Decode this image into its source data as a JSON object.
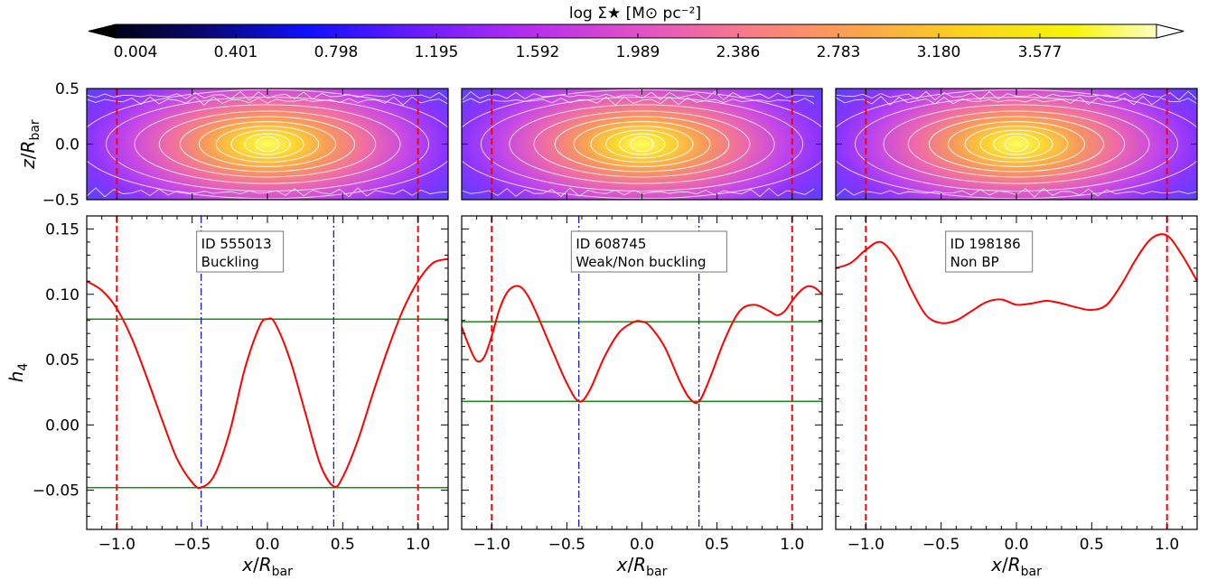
{
  "colorbar": {
    "label": "log Σ★ [M⊙ pc⁻²]",
    "ticks": [
      "0.004",
      "0.401",
      "0.798",
      "1.195",
      "1.592",
      "1.989",
      "2.386",
      "2.783",
      "3.180",
      "3.577"
    ],
    "stops": [
      "#000000",
      "#08086a",
      "#1010ff",
      "#6a1cff",
      "#b42cf0",
      "#e050c8",
      "#f77a8a",
      "#fba24e",
      "#fbd21e",
      "#f5f50a",
      "#ffffff"
    ]
  },
  "chart_data": [
    {
      "type": "line",
      "panel": "buckling",
      "annotation": [
        "ID 555013",
        "Buckling"
      ],
      "xlabel": "x/R_bar",
      "ylabel": "h_4",
      "top_ylabel": "z/R_bar",
      "xlim": [
        -1.2,
        1.2
      ],
      "ylim": [
        -0.08,
        0.16
      ],
      "xticks": [
        "-1.0",
        "-0.5",
        "0.0",
        "0.5",
        "1.0"
      ],
      "yticks": [
        "-0.05",
        "0.00",
        "0.05",
        "0.10",
        "0.15"
      ],
      "top_yticks": [
        "0.5",
        "0.0",
        "-0.5"
      ],
      "top_ylim": [
        -0.5,
        0.5
      ],
      "series": [
        {
          "color": "#ff0000",
          "x": [
            -1.2,
            -1.1,
            -1.0,
            -0.9,
            -0.8,
            -0.7,
            -0.6,
            -0.5,
            -0.44,
            -0.35,
            -0.25,
            -0.15,
            -0.05,
            0.0,
            0.05,
            0.15,
            0.25,
            0.35,
            0.44,
            0.5,
            0.6,
            0.7,
            0.8,
            0.9,
            1.0,
            1.1,
            1.2
          ],
          "y": [
            0.11,
            0.103,
            0.089,
            0.066,
            0.036,
            0.004,
            -0.026,
            -0.044,
            -0.048,
            -0.038,
            -0.005,
            0.043,
            0.076,
            0.081,
            0.078,
            0.05,
            0.01,
            -0.03,
            -0.047,
            -0.04,
            -0.012,
            0.024,
            0.058,
            0.088,
            0.11,
            0.124,
            0.127
          ]
        }
      ],
      "hlines": [
        0.081,
        -0.048
      ],
      "red_vlines": [
        -1.0,
        1.0
      ],
      "blue_vlines": [
        -0.44,
        0.44
      ]
    },
    {
      "type": "line",
      "panel": "weak",
      "annotation": [
        "ID 608745",
        "Weak/Non buckling"
      ],
      "xlabel": "x/R_bar",
      "xlim": [
        -1.2,
        1.2
      ],
      "ylim": [
        -0.08,
        0.16
      ],
      "xticks": [
        "-1.0",
        "-0.5",
        "0.0",
        "0.5",
        "1.0"
      ],
      "series": [
        {
          "color": "#ff0000",
          "x": [
            -1.2,
            -1.15,
            -1.1,
            -1.05,
            -1.0,
            -0.95,
            -0.9,
            -0.85,
            -0.8,
            -0.75,
            -0.7,
            -0.6,
            -0.5,
            -0.42,
            -0.35,
            -0.25,
            -0.15,
            -0.05,
            0.0,
            0.05,
            0.15,
            0.25,
            0.32,
            0.38,
            0.45,
            0.55,
            0.65,
            0.75,
            0.85,
            0.9,
            0.95,
            1.0,
            1.05,
            1.1,
            1.15,
            1.2
          ],
          "y": [
            0.075,
            0.06,
            0.049,
            0.052,
            0.068,
            0.088,
            0.101,
            0.106,
            0.105,
            0.097,
            0.085,
            0.058,
            0.032,
            0.018,
            0.026,
            0.052,
            0.071,
            0.079,
            0.079,
            0.076,
            0.06,
            0.034,
            0.02,
            0.018,
            0.035,
            0.065,
            0.087,
            0.092,
            0.087,
            0.084,
            0.087,
            0.095,
            0.102,
            0.106,
            0.105,
            0.1
          ]
        }
      ],
      "hlines": [
        0.079,
        0.018
      ],
      "red_vlines": [
        -1.0,
        1.0
      ],
      "blue_vlines": [
        -0.42,
        0.38
      ]
    },
    {
      "type": "line",
      "panel": "nonbp",
      "annotation": [
        "ID 198186",
        "Non BP"
      ],
      "xlabel": "x/R_bar",
      "xlim": [
        -1.2,
        1.2
      ],
      "ylim": [
        -0.08,
        0.16
      ],
      "xticks": [
        "-1.0",
        "-0.5",
        "0.0",
        "0.5",
        "1.0"
      ],
      "series": [
        {
          "color": "#ff0000",
          "x": [
            -1.2,
            -1.1,
            -1.0,
            -0.9,
            -0.8,
            -0.7,
            -0.6,
            -0.5,
            -0.4,
            -0.3,
            -0.2,
            -0.1,
            0.0,
            0.1,
            0.2,
            0.3,
            0.4,
            0.5,
            0.6,
            0.7,
            0.8,
            0.9,
            1.0,
            1.1,
            1.2
          ],
          "y": [
            0.12,
            0.124,
            0.134,
            0.14,
            0.128,
            0.104,
            0.084,
            0.078,
            0.08,
            0.087,
            0.094,
            0.096,
            0.092,
            0.093,
            0.095,
            0.093,
            0.09,
            0.088,
            0.092,
            0.108,
            0.128,
            0.143,
            0.145,
            0.13,
            0.11
          ]
        }
      ],
      "hlines": [],
      "red_vlines": [
        -1.0,
        1.0
      ],
      "blue_vlines": []
    }
  ]
}
